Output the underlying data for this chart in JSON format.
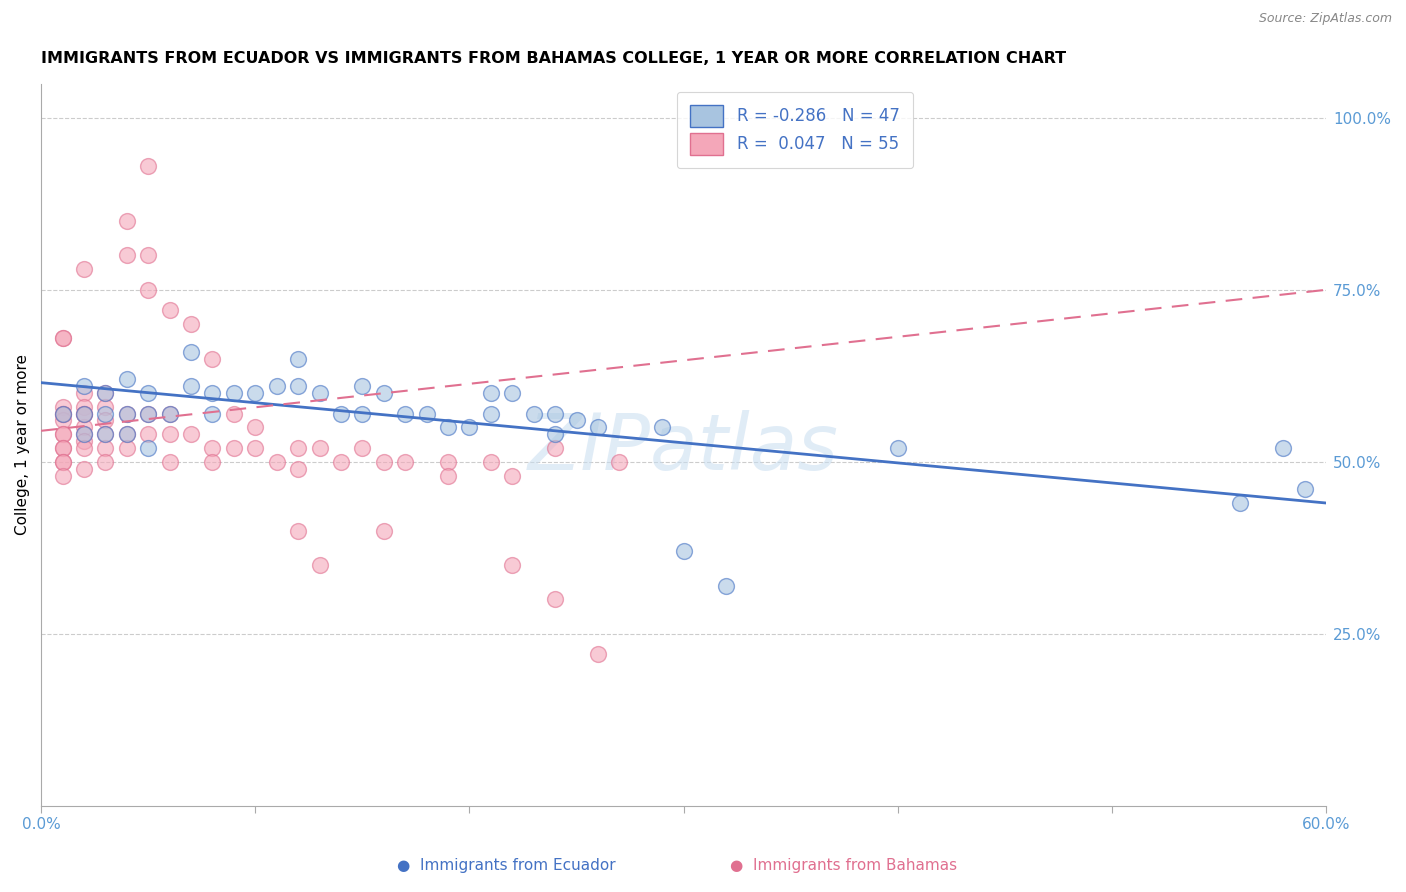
{
  "title": "IMMIGRANTS FROM ECUADOR VS IMMIGRANTS FROM BAHAMAS COLLEGE, 1 YEAR OR MORE CORRELATION CHART",
  "source": "Source: ZipAtlas.com",
  "ylabel": "College, 1 year or more",
  "xlim": [
    0.0,
    0.6
  ],
  "ylim": [
    0.0,
    1.05
  ],
  "xticks": [
    0.0,
    0.1,
    0.2,
    0.3,
    0.4,
    0.5,
    0.6
  ],
  "xticklabels": [
    "0.0%",
    "",
    "",
    "",
    "",
    "",
    "60.0%"
  ],
  "yticks_right": [
    0.25,
    0.5,
    0.75,
    1.0
  ],
  "ytick_labels_right": [
    "25.0%",
    "50.0%",
    "75.0%",
    "100.0%"
  ],
  "ecuador_color": "#a8c4e0",
  "bahamas_color": "#f4a7b9",
  "ecuador_line_color": "#4472c4",
  "bahamas_line_color": "#e07090",
  "watermark": "ZIPatlas",
  "ecuador_x": [
    0.01,
    0.02,
    0.02,
    0.02,
    0.03,
    0.03,
    0.03,
    0.04,
    0.04,
    0.04,
    0.05,
    0.05,
    0.05,
    0.06,
    0.07,
    0.07,
    0.08,
    0.08,
    0.09,
    0.1,
    0.11,
    0.12,
    0.12,
    0.13,
    0.14,
    0.15,
    0.15,
    0.16,
    0.17,
    0.18,
    0.19,
    0.2,
    0.21,
    0.21,
    0.22,
    0.23,
    0.24,
    0.24,
    0.25,
    0.26,
    0.29,
    0.3,
    0.32,
    0.4,
    0.56,
    0.58,
    0.59
  ],
  "ecuador_y": [
    0.57,
    0.61,
    0.57,
    0.54,
    0.6,
    0.57,
    0.54,
    0.62,
    0.57,
    0.54,
    0.6,
    0.57,
    0.52,
    0.57,
    0.66,
    0.61,
    0.6,
    0.57,
    0.6,
    0.6,
    0.61,
    0.65,
    0.61,
    0.6,
    0.57,
    0.61,
    0.57,
    0.6,
    0.57,
    0.57,
    0.55,
    0.55,
    0.6,
    0.57,
    0.6,
    0.57,
    0.57,
    0.54,
    0.56,
    0.55,
    0.55,
    0.37,
    0.32,
    0.52,
    0.44,
    0.52,
    0.46
  ],
  "bahamas_x": [
    0.01,
    0.01,
    0.01,
    0.01,
    0.01,
    0.01,
    0.01,
    0.01,
    0.01,
    0.01,
    0.01,
    0.01,
    0.02,
    0.02,
    0.02,
    0.02,
    0.02,
    0.02,
    0.02,
    0.02,
    0.02,
    0.03,
    0.03,
    0.03,
    0.03,
    0.03,
    0.03,
    0.04,
    0.04,
    0.04,
    0.05,
    0.05,
    0.06,
    0.06,
    0.06,
    0.07,
    0.08,
    0.08,
    0.09,
    0.1,
    0.1,
    0.11,
    0.12,
    0.12,
    0.13,
    0.14,
    0.15,
    0.16,
    0.17,
    0.19,
    0.19,
    0.21,
    0.22,
    0.24,
    0.27
  ],
  "bahamas_y": [
    0.58,
    0.57,
    0.56,
    0.54,
    0.54,
    0.52,
    0.52,
    0.5,
    0.5,
    0.48,
    0.57,
    0.68,
    0.6,
    0.58,
    0.57,
    0.55,
    0.54,
    0.53,
    0.52,
    0.49,
    0.57,
    0.6,
    0.58,
    0.56,
    0.54,
    0.52,
    0.5,
    0.57,
    0.54,
    0.52,
    0.57,
    0.54,
    0.57,
    0.54,
    0.5,
    0.54,
    0.52,
    0.5,
    0.52,
    0.55,
    0.52,
    0.5,
    0.52,
    0.49,
    0.52,
    0.5,
    0.52,
    0.5,
    0.5,
    0.5,
    0.48,
    0.5,
    0.48,
    0.52,
    0.5
  ],
  "bahamas_outliers_x": [
    0.01,
    0.02,
    0.04,
    0.04,
    0.05,
    0.05,
    0.05,
    0.06,
    0.07,
    0.08,
    0.09,
    0.12,
    0.13,
    0.16,
    0.22,
    0.24,
    0.26
  ],
  "bahamas_outliers_y": [
    0.68,
    0.78,
    0.8,
    0.85,
    0.93,
    0.8,
    0.75,
    0.72,
    0.7,
    0.65,
    0.57,
    0.4,
    0.35,
    0.4,
    0.35,
    0.3,
    0.22
  ],
  "ecu_line_x0": 0.0,
  "ecu_line_y0": 0.615,
  "ecu_line_x1": 0.6,
  "ecu_line_y1": 0.44,
  "bah_line_x0": 0.0,
  "bah_line_y0": 0.545,
  "bah_line_x1": 0.6,
  "bah_line_y1": 0.75
}
